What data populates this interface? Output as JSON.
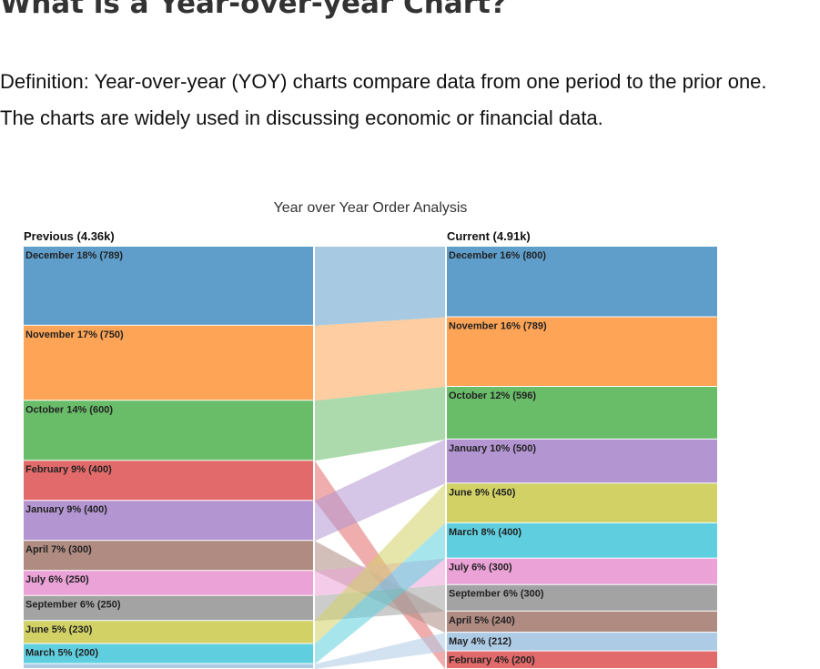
{
  "page": {
    "heading": "What is a Year-over-year Chart?",
    "definition": "Definition: Year-over-year (YOY) charts compare data from one period to the prior one. The charts are widely used in discussing economic or financial data."
  },
  "chart_data": {
    "type": "sankey",
    "title": "Year over Year Order Analysis",
    "previous": {
      "label": "Previous (4.36k)",
      "segments": [
        {
          "month": "December",
          "label": "December 18% (789)",
          "value": 789
        },
        {
          "month": "November",
          "label": "November 17% (750)",
          "value": 750
        },
        {
          "month": "October",
          "label": "October 14% (600)",
          "value": 600
        },
        {
          "month": "February",
          "label": "February 9% (400)",
          "value": 400
        },
        {
          "month": "January",
          "label": "January 9% (400)",
          "value": 400
        },
        {
          "month": "April",
          "label": "April 7% (300)",
          "value": 300
        },
        {
          "month": "July",
          "label": "July 6% (250)",
          "value": 250
        },
        {
          "month": "September",
          "label": "September 6% (250)",
          "value": 250
        },
        {
          "month": "June",
          "label": "June 5% (230)",
          "value": 230
        },
        {
          "month": "March",
          "label": "March 5% (200)",
          "value": 200
        },
        {
          "month": "May",
          "label": "",
          "value": 50
        }
      ]
    },
    "current": {
      "label": "Current (4.91k)",
      "segments": [
        {
          "month": "December",
          "label": "December 16% (800)",
          "value": 800
        },
        {
          "month": "November",
          "label": "November 16% (789)",
          "value": 789
        },
        {
          "month": "October",
          "label": "October 12% (596)",
          "value": 596
        },
        {
          "month": "January",
          "label": "January 10% (500)",
          "value": 500
        },
        {
          "month": "June",
          "label": "June 9% (450)",
          "value": 450
        },
        {
          "month": "March",
          "label": "March 8% (400)",
          "value": 400
        },
        {
          "month": "July",
          "label": "July 6% (300)",
          "value": 300
        },
        {
          "month": "September",
          "label": "September 6% (300)",
          "value": 300
        },
        {
          "month": "April",
          "label": "April 5% (240)",
          "value": 240
        },
        {
          "month": "May",
          "label": "May 4% (212)",
          "value": 212
        },
        {
          "month": "February",
          "label": "February 4% (200)",
          "value": 200
        }
      ]
    },
    "colors": {
      "December": "#5f9ecb",
      "November": "#fda456",
      "October": "#69bc68",
      "February": "#e26a6a",
      "January": "#b395d1",
      "April": "#af8b82",
      "July": "#eba2d7",
      "September": "#a3a3a3",
      "June": "#d1d166",
      "March": "#5fcfdf",
      "May": "#aecbe6"
    }
  }
}
